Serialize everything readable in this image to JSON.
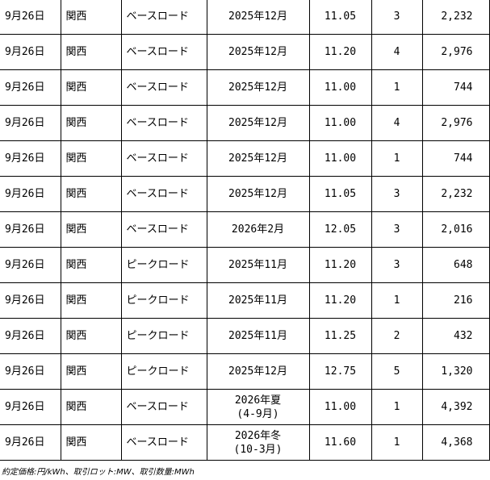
{
  "rows": [
    [
      "9月26日",
      "関西",
      "ベースロード",
      "2025年12月",
      "",
      "11.05",
      "3",
      "2,232"
    ],
    [
      "9月26日",
      "関西",
      "ベースロード",
      "2025年12月",
      "",
      "11.20",
      "4",
      "2,976"
    ],
    [
      "9月26日",
      "関西",
      "ベースロード",
      "2025年12月",
      "",
      "11.00",
      "1",
      "744"
    ],
    [
      "9月26日",
      "関西",
      "ベースロード",
      "2025年12月",
      "",
      "11.00",
      "4",
      "2,976"
    ],
    [
      "9月26日",
      "関西",
      "ベースロード",
      "2025年12月",
      "",
      "11.00",
      "1",
      "744"
    ],
    [
      "9月26日",
      "関西",
      "ベースロード",
      "2025年12月",
      "",
      "11.05",
      "3",
      "2,232"
    ],
    [
      "9月26日",
      "関西",
      "ベースロード",
      "2026年2月",
      "",
      "12.05",
      "3",
      "2,016"
    ],
    [
      "9月26日",
      "関西",
      "ピークロード",
      "2025年11月",
      "",
      "11.20",
      "3",
      "648"
    ],
    [
      "9月26日",
      "関西",
      "ピークロード",
      "2025年11月",
      "",
      "11.20",
      "1",
      "216"
    ],
    [
      "9月26日",
      "関西",
      "ピークロード",
      "2025年11月",
      "",
      "11.25",
      "2",
      "432"
    ],
    [
      "9月26日",
      "関西",
      "ピークロード",
      "2025年12月",
      "",
      "12.75",
      "5",
      "1,320"
    ],
    [
      "9月26日",
      "関西",
      "ベースロード",
      "2026年夏",
      "(4-9月)",
      "11.00",
      "1",
      "4,392"
    ],
    [
      "9月26日",
      "関西",
      "ベースロード",
      "2026年冬",
      "(10-3月)",
      "11.60",
      "1",
      "4,368"
    ]
  ],
  "footnote": "約定価格:円/kWh、取引ロット:MW、取引数量:MWh"
}
